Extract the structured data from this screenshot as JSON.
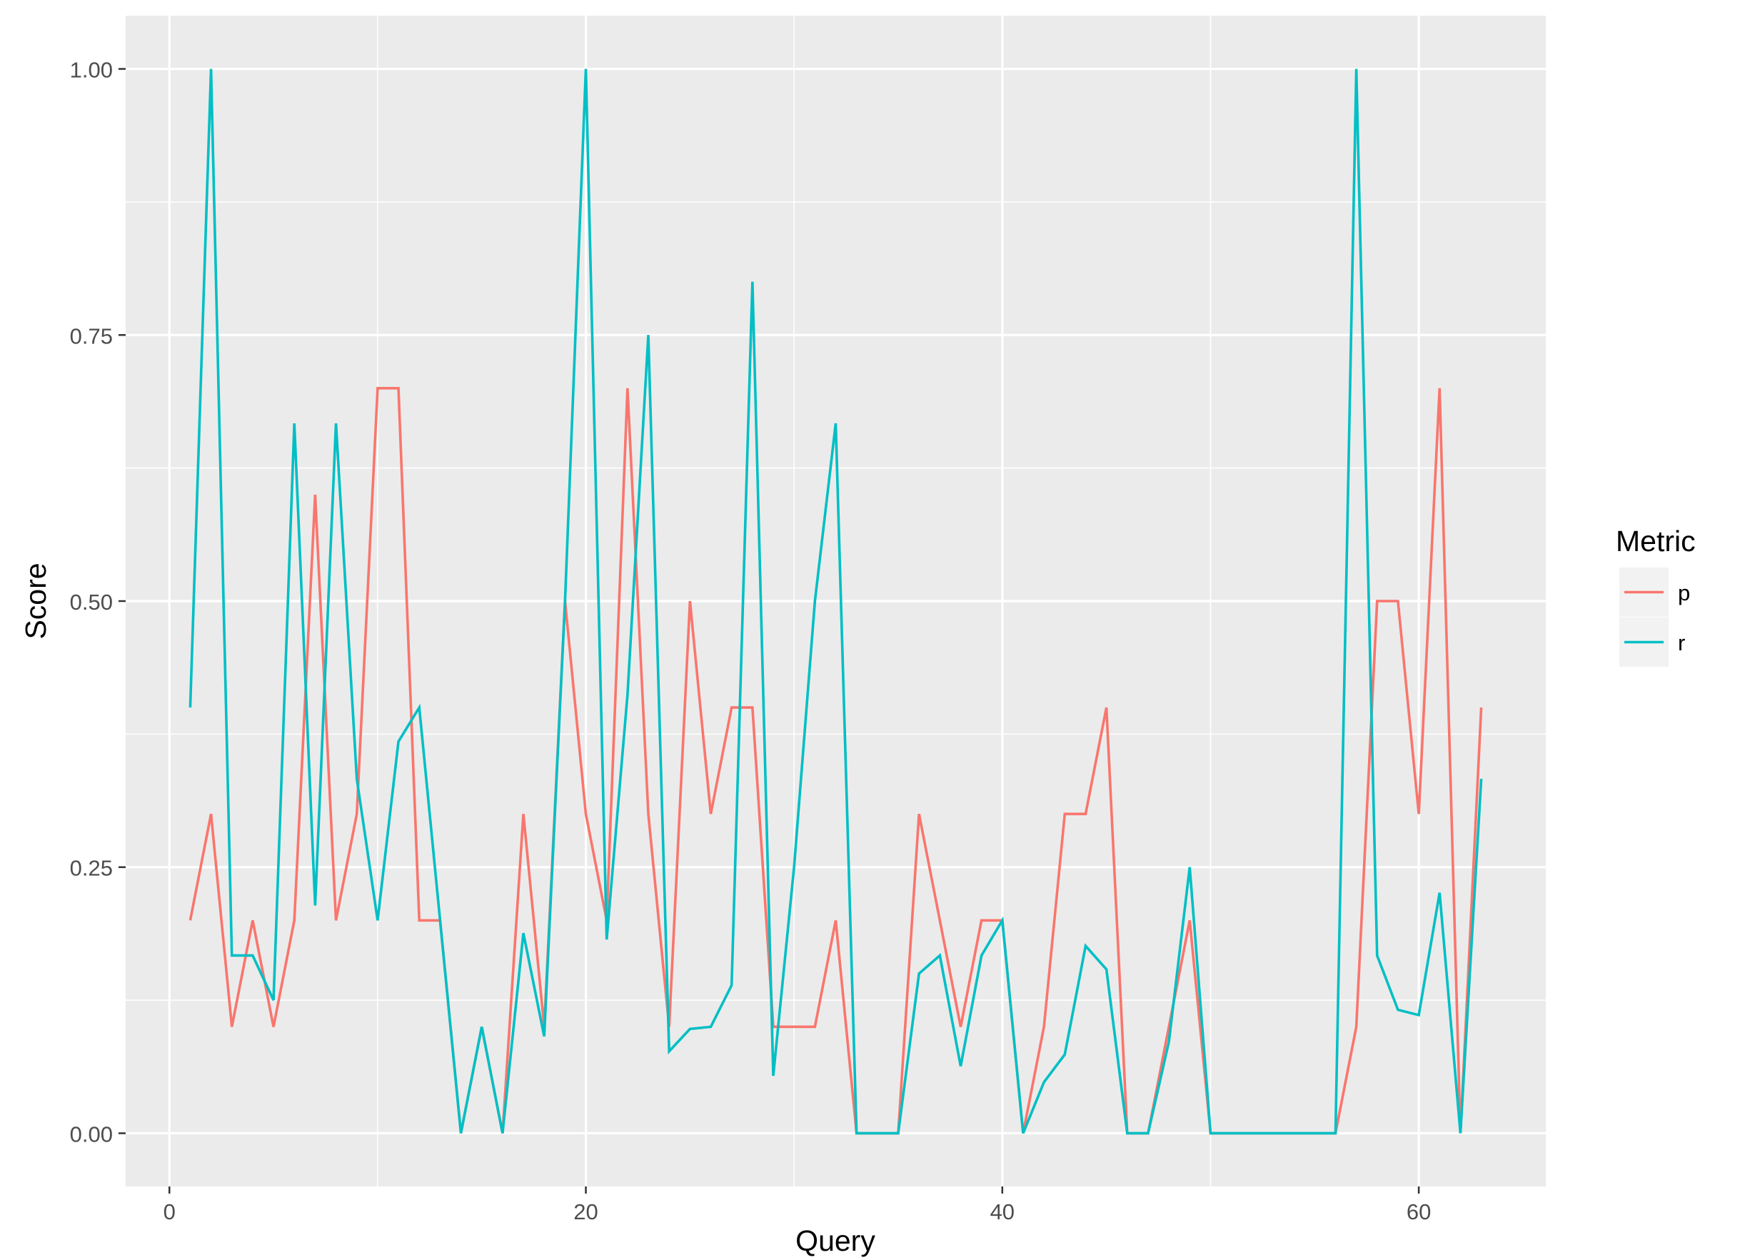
{
  "chart_data": {
    "type": "line",
    "title": "",
    "xlabel": "Query",
    "ylabel": "Score",
    "xlim": [
      -2.1,
      66.1
    ],
    "ylim": [
      -0.05,
      1.05
    ],
    "x_ticks": [
      0,
      20,
      40,
      60
    ],
    "x_tick_labels": [
      "0",
      "20",
      "40",
      "60"
    ],
    "y_ticks": [
      0,
      0.25,
      0.5,
      0.75,
      1.0
    ],
    "y_tick_labels": [
      "0.00",
      "0.25",
      "0.50",
      "0.75",
      "1.00"
    ],
    "grid": true,
    "legend": {
      "title": "Metric",
      "position": "right"
    },
    "x": [
      1,
      2,
      3,
      4,
      5,
      6,
      7,
      8,
      9,
      10,
      11,
      12,
      13,
      14,
      15,
      16,
      17,
      18,
      19,
      20,
      21,
      22,
      23,
      24,
      25,
      26,
      27,
      28,
      29,
      30,
      31,
      32,
      33,
      34,
      35,
      36,
      37,
      38,
      39,
      40,
      41,
      42,
      43,
      44,
      45,
      46,
      47,
      48,
      49,
      50,
      51,
      52,
      53,
      54,
      55,
      56,
      57,
      58,
      59,
      60,
      61,
      62,
      63
    ],
    "series": [
      {
        "name": "p",
        "color": "#F8766D",
        "values": [
          0.2,
          0.3,
          0.1,
          0.2,
          0.1,
          0.2,
          0.6,
          0.2,
          0.3,
          0.7,
          0.7,
          0.2,
          0.2,
          0.0,
          0.1,
          0.0,
          0.3,
          0.1,
          0.5,
          0.3,
          0.2,
          0.7,
          0.3,
          0.1,
          0.5,
          0.3,
          0.4,
          0.4,
          0.1,
          0.1,
          0.1,
          0.2,
          0.0,
          0.0,
          0.0,
          0.3,
          0.2,
          0.1,
          0.2,
          0.2,
          0.0,
          0.1,
          0.3,
          0.3,
          0.4,
          0.0,
          0.0,
          0.1,
          0.2,
          0.0,
          0.0,
          0.0,
          0.0,
          0.0,
          0.0,
          0.0,
          0.1,
          0.5,
          0.5,
          0.3,
          0.7,
          0.0,
          0.4
        ]
      },
      {
        "name": "r",
        "color": "#00BFC4",
        "values": [
          0.4,
          1.0,
          0.167,
          0.167,
          0.125,
          0.667,
          0.214,
          0.667,
          0.333,
          0.2,
          0.368,
          0.4,
          0.2,
          0.0,
          0.1,
          0.0,
          0.188,
          0.091,
          0.5,
          1.0,
          0.182,
          0.412,
          0.75,
          0.077,
          0.098,
          0.1,
          0.139,
          0.8,
          0.054,
          0.25,
          0.5,
          0.667,
          0.0,
          0.0,
          0.0,
          0.15,
          0.167,
          0.063,
          0.167,
          0.2,
          0.0,
          0.048,
          0.074,
          0.176,
          0.154,
          0.0,
          0.0,
          0.086,
          0.25,
          0.0,
          0.0,
          0.0,
          0.0,
          0.0,
          0.0,
          0.0,
          1.0,
          0.167,
          0.116,
          0.111,
          0.226,
          0.0,
          0.333
        ]
      }
    ]
  }
}
